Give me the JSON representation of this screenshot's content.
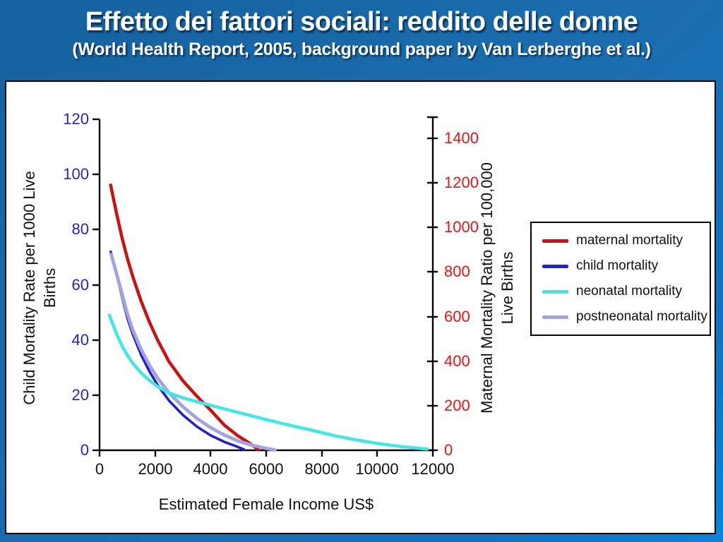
{
  "slide": {
    "title": "Effetto dei fattori sociali: reddito delle donne",
    "subtitle": "(World Health Report, 2005, background paper by Van Lerberghe et al.)"
  },
  "chart_data": {
    "type": "line",
    "grid": false,
    "xlabel": "Estimated Female Income US$",
    "xlim": [
      0,
      12000
    ],
    "x_tick_labels": [
      "0",
      "2000",
      "4000",
      "6000",
      "8000",
      "10000",
      "12000"
    ],
    "left_axis": {
      "label_line1": "Child Mortality Rate per 1000 Live",
      "label_line2": "Births",
      "range": [
        0,
        120
      ],
      "tick_labels": [
        "120",
        "100",
        "80",
        "60",
        "40",
        "20",
        "0"
      ],
      "tick_color": "#2323cf"
    },
    "right_axis": {
      "label_line1": "Maternal Mortality Ratio per 100,000",
      "label_line2": "Live Births",
      "range": [
        0,
        1400
      ],
      "tick_labels": [
        "1400",
        "1200",
        "1000",
        "800",
        "600",
        "400",
        "200",
        "0"
      ],
      "tick_color": "#ee1111"
    },
    "legend": {
      "position": "right-center",
      "entries": [
        {
          "label": "maternal mortality",
          "color": "#cc1111"
        },
        {
          "label": "child mortality",
          "color": "#2222cc"
        },
        {
          "label": "neonatal mortality",
          "color": "#3fe8e8"
        },
        {
          "label": "postneonatal mortality",
          "color": "#a3a3e0"
        }
      ]
    },
    "series": [
      {
        "key": "maternal-mortality",
        "name": "maternal mortality",
        "axis": "right",
        "color": "#cc1111",
        "width": 4.5,
        "points": [
          [
            400,
            1190
          ],
          [
            600,
            1070
          ],
          [
            800,
            958
          ],
          [
            1000,
            862
          ],
          [
            1200,
            778
          ],
          [
            1500,
            668
          ],
          [
            1800,
            574
          ],
          [
            2100,
            492
          ],
          [
            2500,
            398
          ],
          [
            3000,
            312
          ],
          [
            3500,
            243
          ],
          [
            4000,
            180
          ],
          [
            4500,
            112
          ],
          [
            5000,
            63
          ],
          [
            5300,
            40
          ],
          [
            5600,
            14
          ],
          [
            5720,
            2
          ]
        ]
      },
      {
        "key": "child-mortality",
        "name": "child mortality",
        "axis": "left",
        "color": "#2222cc",
        "width": 3.6,
        "points": [
          [
            400,
            72
          ],
          [
            600,
            64.5
          ],
          [
            800,
            56
          ],
          [
            1000,
            48
          ],
          [
            1200,
            42
          ],
          [
            1500,
            34.5
          ],
          [
            1800,
            28.5
          ],
          [
            2100,
            23.5
          ],
          [
            2500,
            18
          ],
          [
            3000,
            12.8
          ],
          [
            3500,
            8.6
          ],
          [
            4000,
            5.4
          ],
          [
            4500,
            3
          ],
          [
            4900,
            1.5
          ],
          [
            5200,
            0.3
          ]
        ]
      },
      {
        "key": "postneonatal-mortality",
        "name": "postneonatal mortality",
        "axis": "left",
        "color": "#a3a3e0",
        "width": 4.8,
        "points": [
          [
            420,
            71
          ],
          [
            600,
            64.5
          ],
          [
            800,
            57
          ],
          [
            1000,
            49.5
          ],
          [
            1200,
            43.5
          ],
          [
            1500,
            36.5
          ],
          [
            1800,
            30.8
          ],
          [
            2100,
            26
          ],
          [
            2500,
            20.8
          ],
          [
            3000,
            15.8
          ],
          [
            3500,
            11.6
          ],
          [
            4000,
            8.2
          ],
          [
            4500,
            5.5
          ],
          [
            5000,
            3.3
          ],
          [
            5500,
            1.8
          ],
          [
            6000,
            0.7
          ],
          [
            6320,
            0.1
          ]
        ]
      },
      {
        "key": "neonatal-mortality",
        "name": "neonatal mortality",
        "axis": "left",
        "color": "#3fe8e8",
        "width": 4.5,
        "points": [
          [
            350,
            49
          ],
          [
            600,
            42.5
          ],
          [
            800,
            38
          ],
          [
            1000,
            34.5
          ],
          [
            1200,
            31.5
          ],
          [
            1500,
            28
          ],
          [
            1800,
            25.3
          ],
          [
            2100,
            23
          ],
          [
            2500,
            20.8
          ],
          [
            3000,
            19
          ],
          [
            3500,
            17.6
          ],
          [
            4000,
            16.3
          ],
          [
            4500,
            15
          ],
          [
            5000,
            13.7
          ],
          [
            5500,
            12.4
          ],
          [
            6000,
            11.1
          ],
          [
            6500,
            9.9
          ],
          [
            7000,
            8.7
          ],
          [
            7500,
            7.6
          ],
          [
            8000,
            6.4
          ],
          [
            8500,
            5.2
          ],
          [
            9000,
            4.2
          ],
          [
            9500,
            3.3
          ],
          [
            10000,
            2.5
          ],
          [
            10500,
            1.8
          ],
          [
            11000,
            1.2
          ],
          [
            11500,
            0.7
          ],
          [
            11800,
            0.4
          ]
        ]
      }
    ]
  }
}
